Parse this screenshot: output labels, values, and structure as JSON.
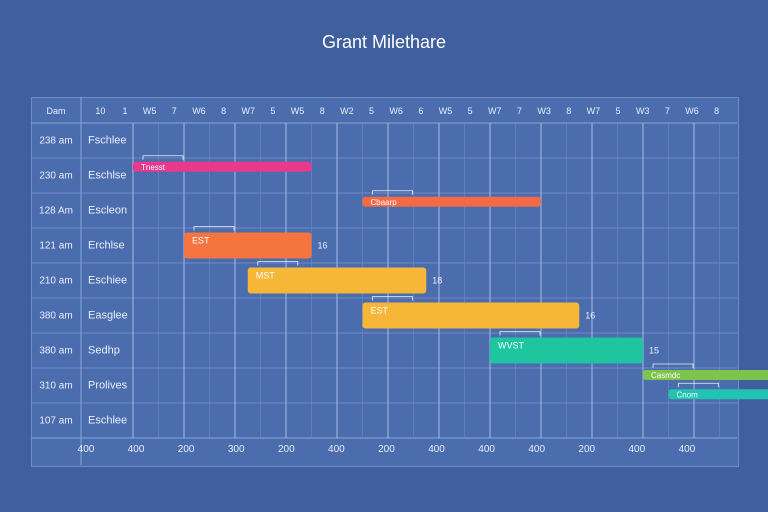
{
  "chart_data": {
    "type": "gantt",
    "title": "Grant Milethare",
    "header": {
      "corner": "Dam",
      "columns": [
        "10",
        "1",
        "W5",
        "7",
        "W6",
        "8",
        "W7",
        "5",
        "W5",
        "8",
        "W2",
        "5",
        "W6",
        "6",
        "W5",
        "5",
        "W7",
        "7",
        "W3",
        "8",
        "W7",
        "5",
        "W3",
        "7",
        "W6",
        "8"
      ]
    },
    "footer": {
      "ticks": [
        "400",
        "400",
        "200",
        "300",
        "200",
        "400",
        "200",
        "400",
        "400",
        "400",
        "200",
        "400",
        "400"
      ]
    },
    "rows": [
      {
        "time": "238 am",
        "label": "Fschlee"
      },
      {
        "time": "230 am",
        "label": "Eschlse"
      },
      {
        "time": "128 Am",
        "label": "Escleon"
      },
      {
        "time": "121 am",
        "label": "Erchlse"
      },
      {
        "time": "210 am",
        "label": "Eschiee"
      },
      {
        "time": "380 am",
        "label": "Easglee"
      },
      {
        "time": "380 am",
        "label": "Sedhp"
      },
      {
        "time": "310 am",
        "label": "Prolives"
      },
      {
        "time": "107 am",
        "label": "Eschlee"
      }
    ],
    "tasks": [
      {
        "row": 0.75,
        "start": 1,
        "end": 4.5,
        "label": "Tnesst",
        "end_label": "",
        "color": "#e8398c",
        "size": "thin"
      },
      {
        "row": 1.75,
        "start": 5.5,
        "end": 9,
        "label": "Cbaarp",
        "end_label": "",
        "color": "#f36a45",
        "size": "thin"
      },
      {
        "row": 3.0,
        "start": 2,
        "end": 4.5,
        "label": "EST",
        "end_label": "16",
        "color": "#f6743f",
        "size": "thick"
      },
      {
        "row": 4.0,
        "start": 3.25,
        "end": 6.75,
        "label": "MST",
        "end_label": "18",
        "color": "#f6b638",
        "size": "thick"
      },
      {
        "row": 5.0,
        "start": 5.5,
        "end": 9.75,
        "label": "EST",
        "end_label": "16",
        "color": "#f6b638",
        "size": "thick"
      },
      {
        "row": 6.0,
        "start": 8,
        "end": 11,
        "label": "WVST",
        "end_label": "15",
        "color": "#1ec6a0",
        "size": "thick"
      },
      {
        "row": 6.7,
        "start": 11,
        "end": 13.75,
        "label": "Casmdc",
        "end_label": "",
        "color": "#7cc44a",
        "size": "thin"
      },
      {
        "row": 7.25,
        "start": 11.5,
        "end": 14,
        "label": "Cnom",
        "end_label": "",
        "color": "#21c4b0",
        "size": "thin"
      }
    ]
  }
}
